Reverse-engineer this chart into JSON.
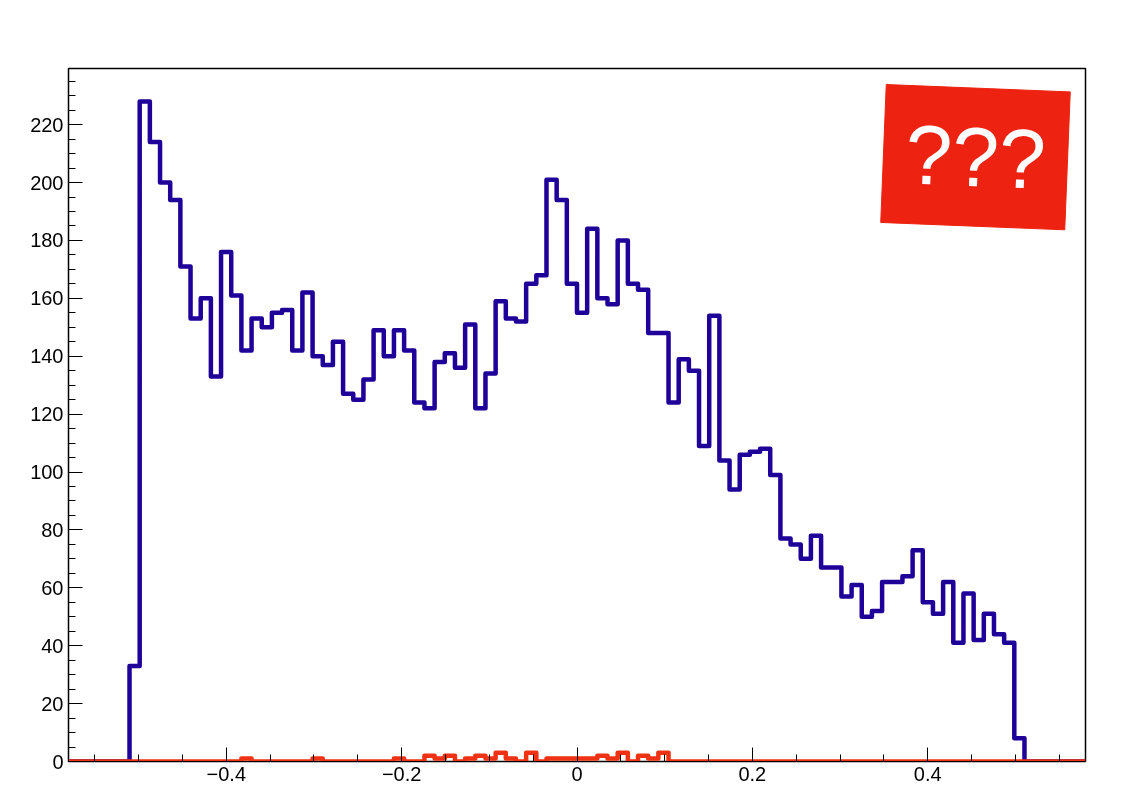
{
  "chart_data": {
    "type": "histogram",
    "bins": [
      -0.58,
      -0.5684,
      -0.5568,
      -0.5452,
      -0.5336,
      -0.522,
      -0.5104,
      -0.4988,
      -0.4872,
      -0.4756,
      -0.464,
      -0.4524,
      -0.4408,
      -0.4292,
      -0.4176,
      -0.406,
      -0.3944,
      -0.3828,
      -0.3712,
      -0.3596,
      -0.348,
      -0.3364,
      -0.3248,
      -0.3132,
      -0.3016,
      -0.29,
      -0.2784,
      -0.2668,
      -0.2552,
      -0.2436,
      -0.232,
      -0.2204,
      -0.2088,
      -0.1972,
      -0.1856,
      -0.174,
      -0.1624,
      -0.1508,
      -0.1392,
      -0.1276,
      -0.116,
      -0.1044,
      -0.0928,
      -0.0812,
      -0.0696,
      -0.058,
      -0.0464,
      -0.0348,
      -0.0232,
      -0.0116,
      0,
      0.0116,
      0.0232,
      0.0348,
      0.0464,
      0.058,
      0.0696,
      0.0812,
      0.0928,
      0.1044,
      0.116,
      0.1276,
      0.1392,
      0.1508,
      0.1624,
      0.174,
      0.1856,
      0.1972,
      0.2088,
      0.2204,
      0.232,
      0.2436,
      0.2552,
      0.2668,
      0.2784,
      0.29,
      0.3016,
      0.3132,
      0.3248,
      0.3364,
      0.348,
      0.3596,
      0.3712,
      0.3828,
      0.3944,
      0.406,
      0.4176,
      0.4292,
      0.4408,
      0.4524,
      0.464,
      0.4756,
      0.4872,
      0.4988,
      0.5104,
      0.522,
      0.5336,
      0.5452,
      0.5568,
      0.5684,
      0.58
    ],
    "series": [
      {
        "color": "#1f0099",
        "values": [
          0,
          0,
          0,
          0,
          0,
          0,
          33,
          228,
          214,
          200,
          194,
          171,
          153,
          160,
          133,
          176,
          161,
          142,
          153,
          150,
          155,
          156,
          142,
          162,
          140,
          137,
          145,
          127,
          125,
          132,
          149,
          140,
          149,
          142,
          124,
          122,
          138,
          141,
          136,
          151,
          122,
          134,
          159,
          153,
          152,
          165,
          168,
          201,
          194,
          165,
          155,
          184,
          160,
          158,
          180,
          165,
          163,
          148,
          148,
          124,
          139,
          135,
          109,
          154,
          104,
          94,
          106,
          107,
          108,
          99,
          77,
          75,
          70,
          78,
          67,
          67,
          57,
          61,
          50,
          52,
          62,
          62,
          64,
          73,
          55,
          51,
          62,
          41,
          58,
          42,
          51,
          44,
          41,
          8,
          0,
          0,
          0,
          0,
          0,
          0
        ]
      },
      {
        "color": "#f03214",
        "values": [
          0,
          0,
          0,
          0,
          0,
          0,
          0,
          0,
          0,
          0,
          0,
          0,
          0,
          0,
          0,
          0,
          0,
          1,
          0,
          0,
          0,
          0,
          0,
          0,
          1,
          0,
          0,
          0,
          0,
          0,
          0,
          0,
          1,
          0,
          0,
          2,
          1,
          2,
          0,
          1,
          2,
          1,
          3,
          1,
          0,
          3,
          0,
          1,
          1,
          1,
          1,
          1,
          2,
          1,
          3,
          0,
          2,
          1,
          3,
          0,
          0,
          0,
          0,
          0,
          0,
          0,
          0,
          0,
          0,
          0,
          0,
          0,
          0,
          0,
          0,
          0,
          0,
          0,
          0,
          0,
          0,
          0,
          0,
          0,
          0,
          0,
          0,
          0,
          0,
          0,
          0,
          0,
          0,
          0,
          0,
          0,
          0,
          0,
          0,
          0
        ]
      }
    ],
    "xlim": [
      -0.58,
      0.58
    ],
    "xticks": [
      -0.4,
      -0.2,
      0,
      0.2,
      0.4
    ],
    "ylim": [
      0,
      239.4
    ],
    "yticks": [
      0,
      20,
      40,
      60,
      80,
      100,
      120,
      140,
      160,
      180,
      200,
      220
    ],
    "grid": false,
    "legend": false,
    "annotations": [
      "???"
    ]
  }
}
